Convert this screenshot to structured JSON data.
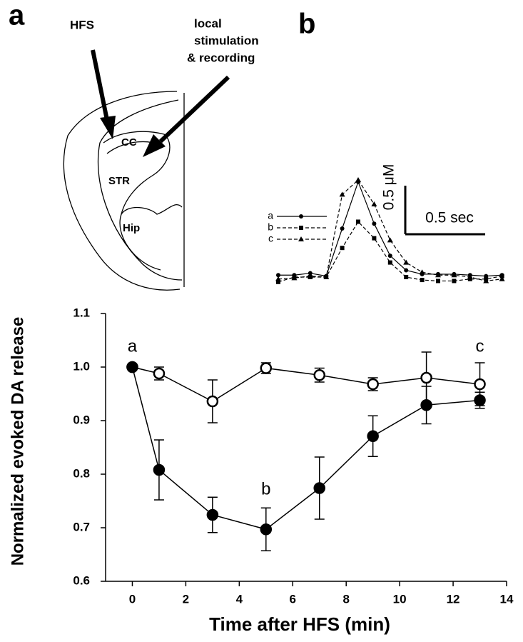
{
  "panel_labels": [
    "a",
    "b"
  ],
  "diagram": {
    "hfs": "HFS",
    "local": [
      "local",
      "stimulation",
      "& recording"
    ],
    "cc": "CC",
    "str": "STR",
    "hip": "Hip"
  },
  "chart_data": [
    {
      "type": "line",
      "xlabel": "Time after HFS (min)",
      "ylabel": "Normalized evoked DA release",
      "x": [
        0,
        1,
        3,
        5,
        7,
        9,
        11,
        13
      ],
      "xlim": [
        -1,
        14
      ],
      "ylim": [
        0.6,
        1.1
      ],
      "xticks": [
        0,
        2,
        4,
        6,
        8,
        10,
        12,
        14
      ],
      "yticks": [
        0.6,
        0.7,
        0.8,
        0.9,
        {
          "value": 1,
          "label": "1.0"
        },
        1.1
      ],
      "series": [
        {
          "marker": "open-circle",
          "color": "#000",
          "values": [
            1.0,
            0.988,
            0.936,
            0.998,
            0.985,
            0.968,
            0.98,
            0.968
          ],
          "errors": [
            0,
            0.012,
            0.04,
            0.01,
            0.013,
            0.012,
            0.048,
            0.04
          ]
        },
        {
          "marker": "filled-circle",
          "color": "#000",
          "values": [
            1.0,
            0.808,
            0.724,
            0.697,
            0.774,
            0.871,
            0.929,
            0.938
          ],
          "errors": [
            0,
            0.056,
            0.033,
            0.04,
            0.058,
            0.038,
            0.035,
            0.015
          ]
        }
      ],
      "annotations": [
        "a",
        "b",
        "c"
      ]
    },
    {
      "type": "line",
      "x": [
        0,
        0.1,
        0.2,
        0.3,
        0.4,
        0.5,
        0.6,
        0.7,
        0.8,
        0.9,
        1.0,
        1.1,
        1.2,
        1.3,
        1.4
      ],
      "series": [
        {
          "name": "a",
          "marker": "circle",
          "dash": "solid",
          "values": [
            0.02,
            0.02,
            0.04,
            0.01,
            0.5,
            0.98,
            0.55,
            0.22,
            0.07,
            0.03,
            0.03,
            0.03,
            0.02,
            0.01,
            0.02
          ]
        },
        {
          "name": "b",
          "marker": "square",
          "dash": "dashed",
          "values": [
            -0.05,
            0.0,
            0.0,
            0.0,
            0.3,
            0.57,
            0.4,
            0.15,
            0.0,
            -0.03,
            -0.04,
            -0.04,
            -0.02,
            -0.02,
            0.01
          ]
        },
        {
          "name": "c",
          "marker": "triangle",
          "dash": "dashed",
          "values": [
            -0.02,
            -0.01,
            0.01,
            0.0,
            0.85,
            1.0,
            0.75,
            0.38,
            0.15,
            0.05,
            0.02,
            0.02,
            0.0,
            -0.04,
            -0.02
          ]
        }
      ],
      "scale_bars": [
        {
          "value": 0.5,
          "label": "0.5 μM"
        },
        {
          "value": 0.5,
          "label": "0.5 sec"
        }
      ]
    }
  ]
}
